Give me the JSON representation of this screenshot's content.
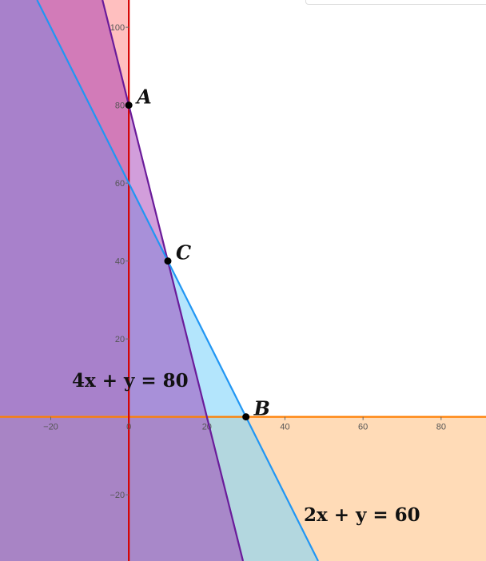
{
  "chart_data": {
    "type": "region",
    "xlim": [
      -33,
      91.5
    ],
    "ylim": [
      -37,
      107
    ],
    "x_ticks": [
      -20,
      0,
      20,
      40,
      60,
      80
    ],
    "y_ticks": [
      -20,
      20,
      40,
      60,
      80,
      100
    ],
    "tick_labels": {
      "x": [
        "−20",
        "0",
        "20",
        "40",
        "60",
        "80"
      ],
      "y": [
        "−20",
        "20",
        "40",
        "60",
        "80",
        "100"
      ]
    },
    "lines": [
      {
        "equation": "4x + y = 80",
        "a": 4,
        "b": 1,
        "c": 80,
        "color": "#6a1b9a"
      },
      {
        "equation": "2x + y = 60",
        "a": 2,
        "b": 1,
        "c": 60,
        "color": "#2196f3"
      }
    ],
    "points": [
      {
        "label": "A",
        "x": 0,
        "y": 80
      },
      {
        "label": "C",
        "x": 10,
        "y": 40
      },
      {
        "label": "B",
        "x": 30,
        "y": 0
      }
    ],
    "equation_labels": [
      "4x + y = 80",
      "2x + y = 60"
    ],
    "colors": {
      "red_region": "#ff8080",
      "purple_region": "#9c27b0",
      "blue_region": "#81d4fa",
      "orange_region": "#ffcc99",
      "y_axis": "#d50000",
      "x_axis": "#ff7f00"
    }
  }
}
